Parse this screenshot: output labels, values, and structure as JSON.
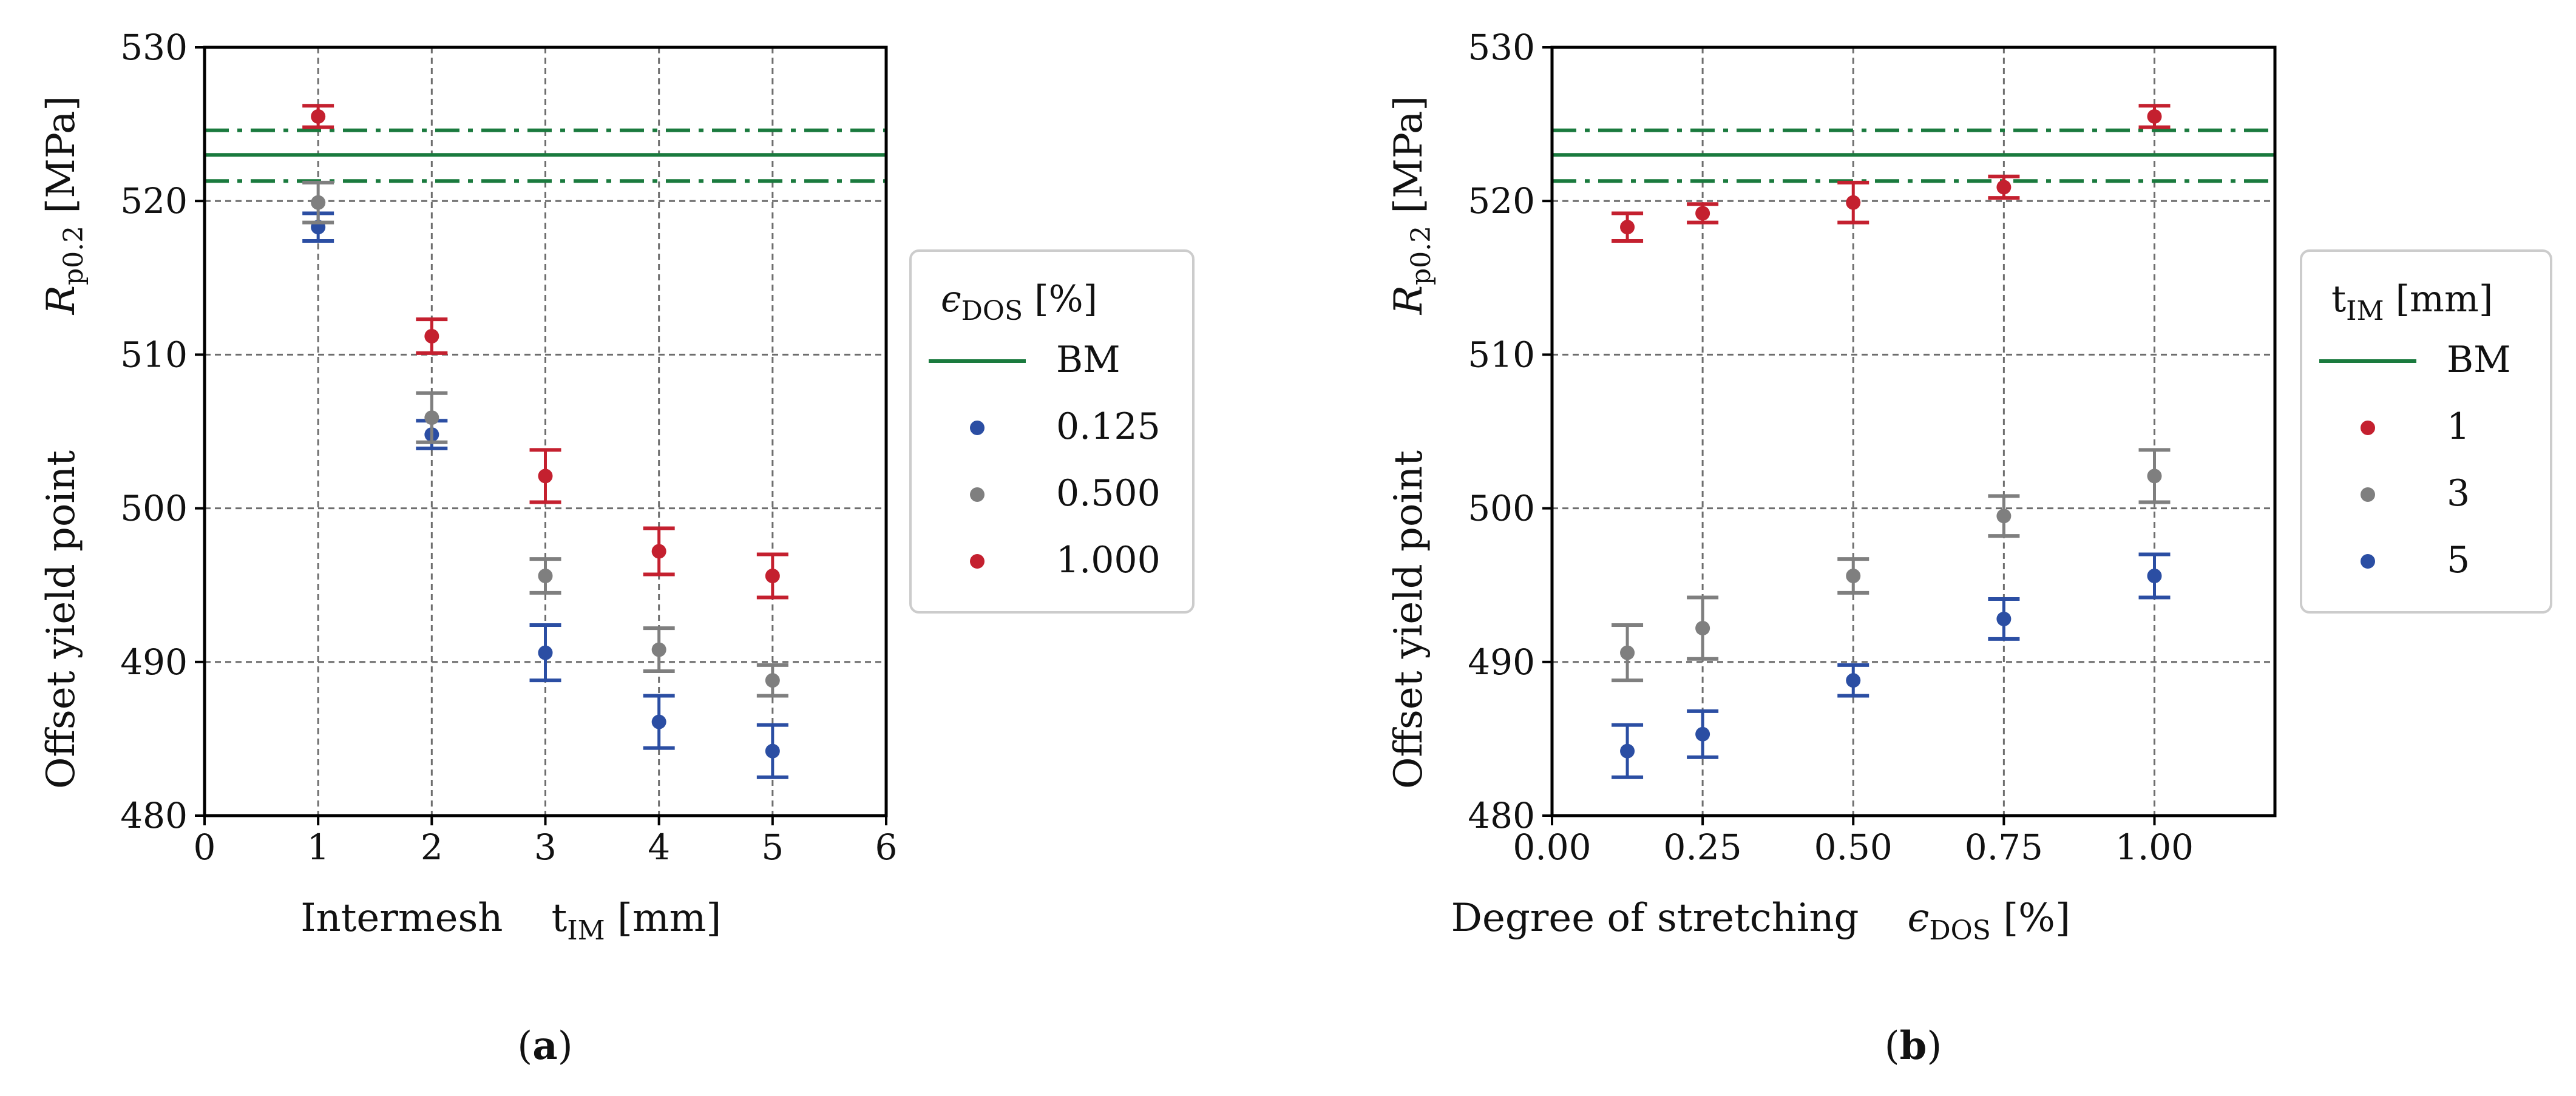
{
  "chart_data": [
    {
      "type": "scatter",
      "panel_label": "a",
      "xlabel_parts": [
        "Intermesh",
        "t",
        "IM",
        " [mm]"
      ],
      "ylabel_parts": [
        "Offset yield point",
        "R",
        "p0.2",
        " [MPa]"
      ],
      "xlim": [
        0,
        6
      ],
      "ylim": [
        480,
        530
      ],
      "xticks": [
        0,
        1,
        2,
        3,
        4,
        5,
        6
      ],
      "xtick_labels": [
        "0",
        "1",
        "2",
        "3",
        "4",
        "5",
        "6"
      ],
      "yticks": [
        480,
        490,
        500,
        510,
        520,
        530
      ],
      "ytick_labels": [
        "480",
        "490",
        "500",
        "510",
        "520",
        "530"
      ],
      "grid": true,
      "legend": {
        "title_parts": [
          "ϵ",
          "DOS",
          " [%]"
        ],
        "position": "outside-right",
        "items": [
          "BM",
          "0.125",
          "0.500",
          "1.000"
        ]
      },
      "reference_lines": {
        "name": "BM",
        "mean": 523.0,
        "upper": 524.6,
        "lower": 521.3,
        "color": "#1a7a3e"
      },
      "series": [
        {
          "name": "0.125",
          "color": "#2b4ea3",
          "x": [
            1,
            2,
            3,
            4,
            5
          ],
          "y": [
            518.3,
            504.8,
            490.6,
            486.1,
            484.2
          ],
          "err": [
            0.9,
            0.9,
            1.8,
            1.7,
            1.7
          ]
        },
        {
          "name": "0.500",
          "color": "#7f7f7f",
          "x": [
            1,
            2,
            3,
            4,
            5
          ],
          "y": [
            519.9,
            505.9,
            495.6,
            490.8,
            488.8
          ],
          "err": [
            1.3,
            1.6,
            1.1,
            1.4,
            1.0
          ]
        },
        {
          "name": "1.000",
          "color": "#c4202f",
          "x": [
            1,
            2,
            3,
            4,
            5
          ],
          "y": [
            525.5,
            511.2,
            502.1,
            497.2,
            495.6
          ],
          "err": [
            0.7,
            1.1,
            1.7,
            1.5,
            1.4
          ]
        }
      ]
    },
    {
      "type": "scatter",
      "panel_label": "b",
      "xlabel_parts": [
        "Degree of stretching",
        "ϵ",
        "DOS",
        " [%]"
      ],
      "ylabel_parts": [
        "Offset yield point",
        "R",
        "p0.2",
        " [MPa]"
      ],
      "xlim": [
        0,
        1.2
      ],
      "ylim": [
        480,
        530
      ],
      "xticks": [
        0,
        0.25,
        0.5,
        0.75,
        1.0
      ],
      "xtick_labels": [
        "0.00",
        "0.25",
        "0.50",
        "0.75",
        "1.00"
      ],
      "yticks": [
        480,
        490,
        500,
        510,
        520,
        530
      ],
      "ytick_labels": [
        "480",
        "490",
        "500",
        "510",
        "520",
        "530"
      ],
      "grid": true,
      "legend": {
        "title_parts": [
          "t",
          "IM",
          " [mm]"
        ],
        "position": "outside-right",
        "items": [
          "BM",
          "1",
          "3",
          "5"
        ]
      },
      "reference_lines": {
        "name": "BM",
        "mean": 523.0,
        "upper": 524.6,
        "lower": 521.3,
        "color": "#1a7a3e"
      },
      "series": [
        {
          "name": "1",
          "color": "#c4202f",
          "x": [
            0.125,
            0.25,
            0.5,
            0.75,
            1.0
          ],
          "y": [
            518.3,
            519.2,
            519.9,
            520.9,
            525.5
          ],
          "err": [
            0.9,
            0.6,
            1.3,
            0.7,
            0.7
          ]
        },
        {
          "name": "3",
          "color": "#7f7f7f",
          "x": [
            0.125,
            0.25,
            0.5,
            0.75,
            1.0
          ],
          "y": [
            490.6,
            492.2,
            495.6,
            499.5,
            502.1
          ],
          "err": [
            1.8,
            2.0,
            1.1,
            1.3,
            1.7
          ]
        },
        {
          "name": "5",
          "color": "#2b4ea3",
          "x": [
            0.125,
            0.25,
            0.5,
            0.75,
            1.0
          ],
          "y": [
            484.2,
            485.3,
            488.8,
            492.8,
            495.6
          ],
          "err": [
            1.7,
            1.5,
            1.0,
            1.3,
            1.4
          ]
        }
      ]
    }
  ]
}
